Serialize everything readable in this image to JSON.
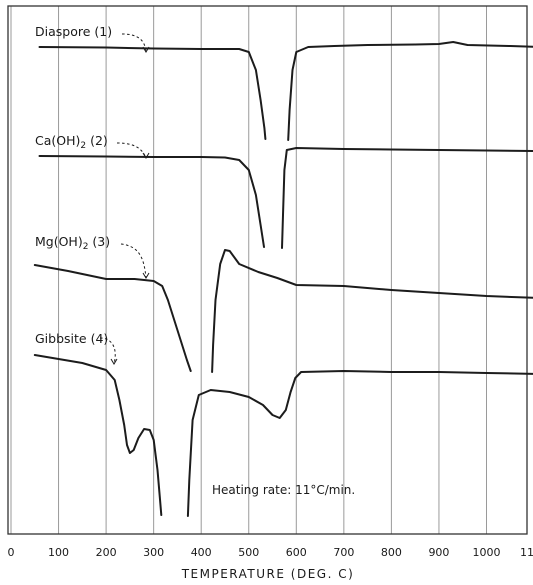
{
  "chart_data": {
    "type": "line",
    "title": "",
    "xlabel": "TEMPERATURE (DEG. C)",
    "ylabel": "",
    "xlim": [
      0,
      1100
    ],
    "x_ticks": [
      "0",
      "100",
      "200",
      "300",
      "400",
      "500",
      "600",
      "700",
      "800",
      "900",
      "1000",
      "1100"
    ],
    "grid": true,
    "annotation": "Heating rate: 11°C/min.",
    "series": [
      {
        "name": "Diaspore (1)",
        "segments": [
          [
            [
              60,
              47
            ],
            [
              200,
              47.5
            ],
            [
              300,
              48.5
            ],
            [
              400,
              49
            ],
            [
              480,
              49
            ],
            [
              500,
              52
            ],
            [
              515,
              70
            ],
            [
              525,
              100
            ],
            [
              533,
              128
            ],
            [
              535,
              139
            ]
          ],
          [
            [
              583,
              140
            ],
            [
              586,
              110
            ],
            [
              592,
              70
            ],
            [
              600,
              52
            ],
            [
              625,
              47
            ],
            [
              680,
              46
            ],
            [
              750,
              45
            ],
            [
              850,
              44.5
            ],
            [
              900,
              44
            ],
            [
              930,
              42
            ],
            [
              960,
              45
            ],
            [
              1050,
              46
            ],
            [
              1110,
              47
            ]
          ]
        ]
      },
      {
        "name": "Ca(OH)2 (2)",
        "segments": [
          [
            [
              60,
              156
            ],
            [
              200,
              156.5
            ],
            [
              300,
              157
            ],
            [
              400,
              157
            ],
            [
              450,
              157.5
            ],
            [
              480,
              160
            ],
            [
              500,
              170
            ],
            [
              515,
              195
            ],
            [
              525,
              225
            ],
            [
              532,
              247
            ]
          ],
          [
            [
              570,
              248
            ],
            [
              572,
              215
            ],
            [
              575,
              170
            ],
            [
              580,
              150
            ],
            [
              600,
              148
            ],
            [
              700,
              149
            ],
            [
              800,
              149.5
            ],
            [
              900,
              150
            ],
            [
              1000,
              150.5
            ],
            [
              1110,
              151
            ]
          ]
        ]
      },
      {
        "name": "Mg(OH)2 (3)",
        "segments": [
          [
            [
              50,
              265
            ],
            [
              120,
              271
            ],
            [
              200,
              279
            ],
            [
              260,
              279
            ],
            [
              300,
              281
            ],
            [
              318,
              286
            ],
            [
              330,
              300
            ],
            [
              350,
              330
            ],
            [
              370,
              360
            ],
            [
              378,
              371
            ]
          ],
          [
            [
              423,
              372
            ],
            [
              425,
              345
            ],
            [
              430,
              300
            ],
            [
              440,
              264
            ],
            [
              450,
              250
            ],
            [
              460,
              251
            ],
            [
              480,
              264
            ],
            [
              520,
              272
            ],
            [
              560,
              278
            ],
            [
              600,
              285
            ],
            [
              700,
              286
            ],
            [
              800,
              290
            ],
            [
              900,
              293
            ],
            [
              1000,
              296
            ],
            [
              1110,
              298
            ]
          ]
        ]
      },
      {
        "name": "Gibbsite (4)",
        "segments": [
          [
            [
              50,
              355
            ],
            [
              150,
              363
            ],
            [
              200,
              370
            ],
            [
              218,
              380
            ],
            [
              228,
              400
            ],
            [
              238,
              425
            ],
            [
              244,
              445
            ],
            [
              250,
              453
            ],
            [
              258,
              450
            ],
            [
              268,
              438
            ],
            [
              280,
              429
            ],
            [
              292,
              430
            ],
            [
              300,
              440
            ],
            [
              308,
              470
            ],
            [
              313,
              497
            ],
            [
              316,
              515
            ]
          ],
          [
            [
              372,
              516
            ],
            [
              375,
              480
            ],
            [
              382,
              420
            ],
            [
              395,
              395
            ],
            [
              420,
              390
            ],
            [
              460,
              392
            ],
            [
              500,
              397
            ],
            [
              530,
              405
            ],
            [
              550,
              415
            ],
            [
              565,
              418
            ],
            [
              578,
              410
            ],
            [
              588,
              392
            ],
            [
              598,
              378
            ],
            [
              610,
              372
            ],
            [
              700,
              371
            ],
            [
              800,
              372
            ],
            [
              900,
              372
            ],
            [
              1000,
              373
            ],
            [
              1110,
              374
            ]
          ]
        ]
      }
    ]
  }
}
